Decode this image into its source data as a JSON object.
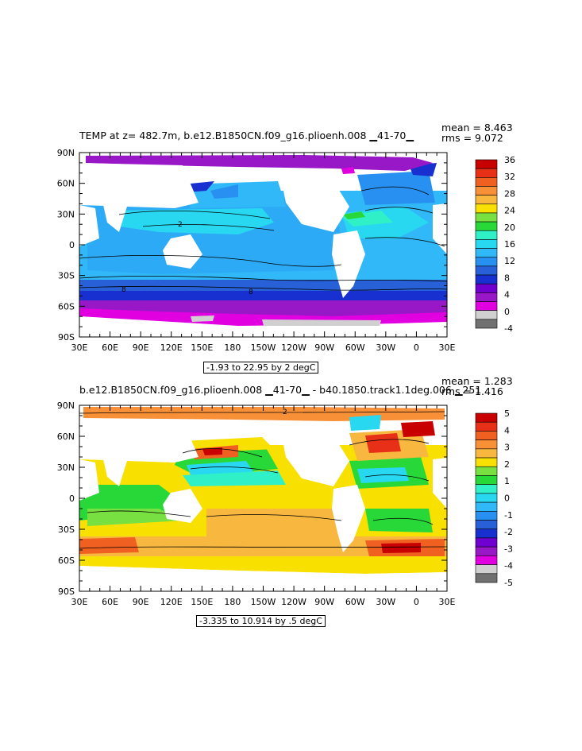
{
  "panel1": {
    "title": "TEMP at z= 482.7m, b.e12.B1850CN.f09_g16.plioenh.008 ▁41-70▁",
    "mean": "mean = 8.463",
    "rms": "rms = 9.072",
    "range": "-1.93 to 22.95 by 2 degC",
    "colorbar": {
      "labels": [
        "36",
        "32",
        "28",
        "24",
        "20",
        "16",
        "12",
        "8",
        "4",
        "0",
        "-4"
      ],
      "colors": [
        "#c80000",
        "#e83018",
        "#f06020",
        "#f89038",
        "#f8b840",
        "#f8e000",
        "#78e040",
        "#28d838",
        "#30f0c8",
        "#28d8f0",
        "#30b8f8",
        "#2890f0",
        "#2860d8",
        "#1830d0",
        "#7000d0",
        "#9818c8",
        "#e000e0",
        "#d0d0d0",
        "#707070"
      ]
    },
    "contour_labels": [
      "2",
      "8",
      "8"
    ]
  },
  "panel2": {
    "title": "b.e12.B1850CN.f09_g16.plioenh.008 ▁41-70▁ - b40.1850.track1.1deg.006 ▁251",
    "mean": "mean = 1.283",
    "rms": "rms = 1.416",
    "range": "-3.335 to 10.914 by .5 degC",
    "colorbar": {
      "labels": [
        "5",
        "4",
        "3",
        "2",
        "1",
        "0",
        "-1",
        "-2",
        "-3",
        "-4",
        "-5"
      ],
      "colors": [
        "#c80000",
        "#e83018",
        "#f06020",
        "#f89038",
        "#f8b840",
        "#f8e000",
        "#78e040",
        "#28d838",
        "#30f0c8",
        "#28d8f0",
        "#30b8f8",
        "#2890f0",
        "#2860d8",
        "#1830d0",
        "#7000d0",
        "#9818c8",
        "#e000e0",
        "#d0d0d0",
        "#707070"
      ]
    },
    "contour_labels": [
      "2"
    ]
  },
  "axes": {
    "lat_labels": [
      "90N",
      "60N",
      "30N",
      "0",
      "30S",
      "60S",
      "90S"
    ],
    "lon_labels": [
      "30E",
      "60E",
      "90E",
      "120E",
      "150E",
      "180",
      "150W",
      "120W",
      "90W",
      "60W",
      "30W",
      "0",
      "30E"
    ]
  }
}
